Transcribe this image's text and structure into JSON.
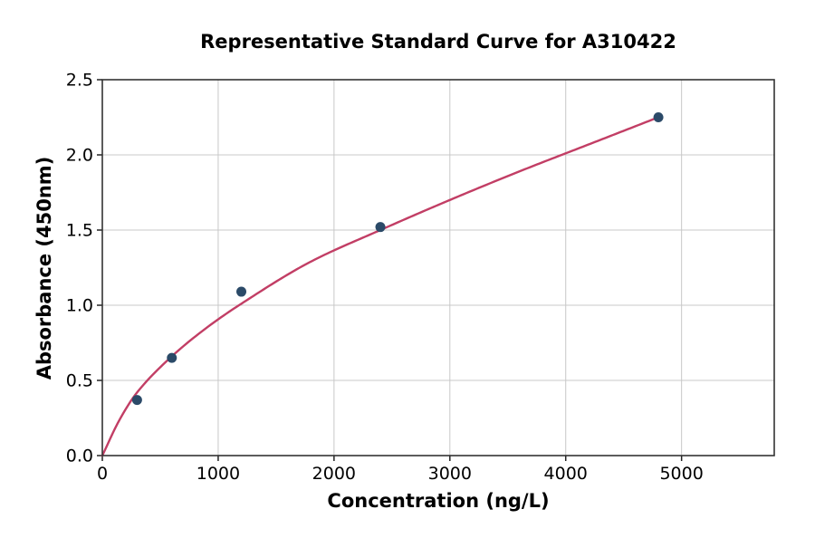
{
  "chart_data": {
    "type": "scatter",
    "title": "Representative Standard Curve for A310422",
    "xlabel": "Concentration (ng/L)",
    "ylabel": "Absorbance (450nm)",
    "xlim": [
      0,
      5800
    ],
    "ylim": [
      0,
      2.5
    ],
    "grid": true,
    "legend": "none",
    "x_ticks": [
      0,
      1000,
      2000,
      3000,
      4000,
      5000
    ],
    "x_tick_labels": [
      "0",
      "1000",
      "2000",
      "3000",
      "4000",
      "5000"
    ],
    "y_ticks": [
      0,
      0.5,
      1.0,
      1.5,
      2.0,
      2.5
    ],
    "y_tick_labels": [
      "0.0",
      "0.5",
      "1.0",
      "1.5",
      "2.0",
      "2.5"
    ],
    "points": {
      "x": [
        300,
        600,
        1200,
        2400,
        4800
      ],
      "y": [
        0.37,
        0.65,
        1.09,
        1.52,
        2.25
      ]
    },
    "fit_curve": {
      "description": "smooth saturating fit from origin through standards, ends at last point",
      "x": [
        0,
        150,
        300,
        600,
        900,
        1200,
        1800,
        2400,
        3000,
        3600,
        4200,
        4800
      ],
      "y": [
        0,
        0.24,
        0.42,
        0.66,
        0.85,
        1.01,
        1.29,
        1.5,
        1.7,
        1.89,
        2.07,
        2.25
      ]
    },
    "colors": {
      "curve": "#c23e65",
      "point": "#2b4a68",
      "grid": "#c8c8c8",
      "spine": "#333333",
      "tick": "#222222",
      "tick_label": "#000000",
      "background": "#ffffff"
    }
  }
}
